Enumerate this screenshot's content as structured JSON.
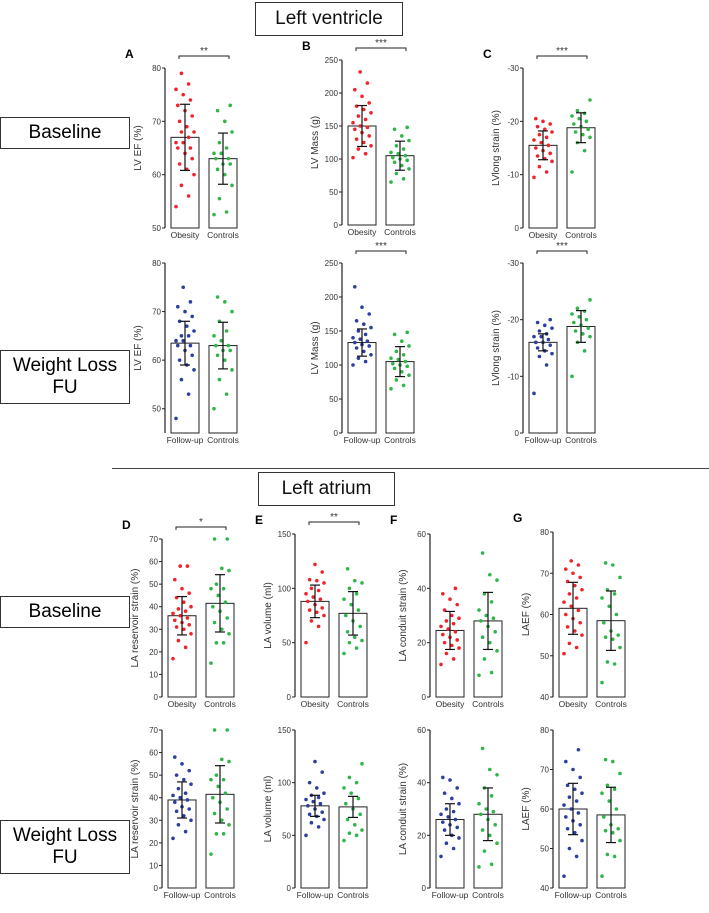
{
  "sections": {
    "lv": "Left ventricle",
    "la": "Left atrium"
  },
  "rows": {
    "baseline": "Baseline",
    "fu": "Weight Loss FU"
  },
  "colors": {
    "obesity": "#f2222b",
    "controls": "#2fb54a",
    "followup": "#2a3fa0"
  },
  "chart_data": [
    {
      "id": "A",
      "letter": "A",
      "type": "bar",
      "ylabel": "LV EF (%)",
      "ylim": [
        50,
        80
      ],
      "ticks": [
        50,
        60,
        70,
        80
      ],
      "sig": "**",
      "groups": [
        {
          "label": "Obesity",
          "mean": 67,
          "sd": 6.2,
          "color": "obesity",
          "points": [
            54,
            56,
            58,
            60,
            61,
            62,
            63,
            64,
            65,
            65,
            66,
            66,
            67,
            68,
            68,
            69,
            70,
            71,
            72,
            73,
            74,
            75,
            76,
            77,
            79
          ]
        },
        {
          "label": "Controls",
          "mean": 63,
          "sd": 4.8,
          "color": "controls",
          "points": [
            52.5,
            53,
            55.5,
            58,
            60,
            61,
            62,
            62,
            63,
            63,
            64,
            64,
            65,
            66,
            68,
            70,
            72,
            73
          ]
        }
      ]
    },
    {
      "id": "B",
      "letter": "B",
      "type": "bar",
      "ylabel": "LV Mass (g)",
      "ylim": [
        0,
        250
      ],
      "ticks": [
        0,
        50,
        100,
        150,
        200,
        250
      ],
      "sig": "***",
      "groups": [
        {
          "label": "Obesity",
          "mean": 150,
          "sd": 31,
          "color": "obesity",
          "points": [
            102,
            108,
            115,
            120,
            125,
            130,
            135,
            140,
            145,
            148,
            150,
            155,
            160,
            165,
            170,
            175,
            180,
            185,
            195,
            205,
            215,
            232
          ]
        },
        {
          "label": "Controls",
          "mean": 105,
          "sd": 22,
          "color": "controls",
          "points": [
            65,
            70,
            78,
            85,
            90,
            95,
            98,
            100,
            102,
            105,
            108,
            110,
            115,
            120,
            128,
            135,
            145,
            148
          ]
        }
      ]
    },
    {
      "id": "C",
      "letter": "C",
      "type": "bar",
      "ylabel": "LVlong strain (%)",
      "ylim": [
        0,
        -30
      ],
      "ticks": [
        0,
        -10,
        -20,
        -30
      ],
      "sig": "***",
      "groups": [
        {
          "label": "Obesity",
          "mean": -15.5,
          "sd": 2.7,
          "color": "obesity",
          "points": [
            -9.5,
            -10.5,
            -11.5,
            -12.5,
            -13,
            -13.5,
            -14,
            -14.5,
            -15,
            -15.5,
            -16,
            -16.5,
            -17,
            -17.5,
            -18,
            -18.5,
            -19,
            -19.5,
            -20,
            -20.5
          ]
        },
        {
          "label": "Controls",
          "mean": -18.8,
          "sd": 2.8,
          "color": "controls",
          "points": [
            -10.5,
            -14.5,
            -16,
            -17,
            -17.5,
            -18,
            -18.5,
            -19,
            -19.5,
            -20,
            -20.5,
            -21,
            -21.5,
            -22,
            -24
          ]
        }
      ]
    },
    {
      "id": "A2",
      "letter": "",
      "type": "bar",
      "ylabel": "LV EF (%)",
      "ylim": [
        45,
        80
      ],
      "ticks": [
        50,
        60,
        70,
        80
      ],
      "sig": "",
      "groups": [
        {
          "label": "Follow-up",
          "mean": 63.5,
          "sd": 4.5,
          "color": "followup",
          "points": [
            48,
            53,
            56,
            58,
            59,
            60,
            61,
            62,
            63,
            63,
            64,
            64,
            65,
            65,
            66,
            67,
            68,
            69,
            70,
            71,
            72,
            75
          ]
        },
        {
          "label": "Controls",
          "mean": 63,
          "sd": 4.8,
          "color": "controls",
          "points": [
            50,
            53,
            56,
            58,
            60,
            61,
            62,
            62,
            63,
            63,
            64,
            65,
            66,
            68,
            70,
            72,
            73
          ]
        }
      ]
    },
    {
      "id": "B2",
      "letter": "",
      "type": "bar",
      "ylabel": "LV Mass (g)",
      "ylim": [
        0,
        250
      ],
      "ticks": [
        0,
        50,
        100,
        150,
        200,
        250
      ],
      "sig": "***",
      "groups": [
        {
          "label": "Follow-up",
          "mean": 133,
          "sd": 20,
          "color": "followup",
          "points": [
            100,
            105,
            110,
            115,
            120,
            125,
            128,
            130,
            133,
            135,
            138,
            140,
            145,
            150,
            155,
            160,
            165,
            175,
            185,
            215
          ]
        },
        {
          "label": "Controls",
          "mean": 105,
          "sd": 22,
          "color": "controls",
          "points": [
            65,
            70,
            78,
            85,
            90,
            95,
            98,
            100,
            102,
            105,
            108,
            110,
            115,
            120,
            128,
            135,
            145,
            148
          ]
        }
      ]
    },
    {
      "id": "C2",
      "letter": "",
      "type": "bar",
      "ylabel": "LVlong strain (%)",
      "ylim": [
        0,
        -30
      ],
      "ticks": [
        0,
        -10,
        -20,
        -30
      ],
      "sig": "***",
      "groups": [
        {
          "label": "Follow-up",
          "mean": -16,
          "sd": 1.5,
          "color": "followup",
          "points": [
            -7,
            -12,
            -13.5,
            -14,
            -14.5,
            -15,
            -15.5,
            -16,
            -16,
            -16.5,
            -17,
            -17,
            -17.5,
            -18,
            -18.5,
            -19,
            -19.5,
            -20
          ]
        },
        {
          "label": "Controls",
          "mean": -18.8,
          "sd": 2.8,
          "color": "controls",
          "points": [
            -10,
            -14.5,
            -16,
            -17,
            -17.5,
            -18,
            -18.5,
            -19,
            -19.5,
            -20,
            -20.5,
            -21,
            -21.5,
            -22,
            -23.5
          ]
        }
      ]
    },
    {
      "id": "D",
      "letter": "D",
      "type": "bar",
      "ylabel": "LA reservoir strain (%)",
      "ylim": [
        0,
        70
      ],
      "ticks": [
        0,
        10,
        20,
        30,
        40,
        50,
        60,
        70
      ],
      "sig": "*",
      "groups": [
        {
          "label": "Obesity",
          "mean": 36,
          "sd": 8.5,
          "color": "obesity",
          "points": [
            17,
            22,
            25,
            28,
            30,
            31,
            32,
            33,
            34,
            35,
            36,
            37,
            38,
            39,
            40,
            42,
            44,
            46,
            48,
            52,
            58,
            58
          ]
        },
        {
          "label": "Controls",
          "mean": 41.5,
          "sd": 12.7,
          "color": "controls",
          "points": [
            15,
            24,
            24,
            28,
            30,
            33,
            35,
            38,
            40,
            42,
            45,
            48,
            48,
            50,
            56,
            57,
            70,
            70
          ]
        }
      ]
    },
    {
      "id": "E",
      "letter": "E",
      "type": "bar",
      "ylabel": "LA volume (ml)",
      "ylim": [
        0,
        150
      ],
      "ticks": [
        0,
        50,
        100,
        150
      ],
      "sig": "**",
      "groups": [
        {
          "label": "Obesity",
          "mean": 88,
          "sd": 15,
          "color": "obesity",
          "points": [
            50,
            65,
            70,
            75,
            78,
            80,
            82,
            85,
            88,
            90,
            92,
            95,
            98,
            100,
            105,
            107,
            108,
            115,
            122
          ]
        },
        {
          "label": "Controls",
          "mean": 77,
          "sd": 20,
          "color": "controls",
          "points": [
            40,
            45,
            50,
            52,
            55,
            60,
            65,
            70,
            75,
            80,
            85,
            90,
            95,
            100,
            105,
            107,
            118
          ]
        }
      ]
    },
    {
      "id": "F",
      "letter": "F",
      "type": "bar",
      "ylabel": "LA conduit strain (%)",
      "ylim": [
        0,
        60
      ],
      "ticks": [
        0,
        20,
        40,
        60
      ],
      "sig": "",
      "groups": [
        {
          "label": "Obesity",
          "mean": 24.5,
          "sd": 7,
          "color": "obesity",
          "points": [
            12,
            14,
            16,
            18,
            19,
            20,
            21,
            22,
            23,
            24,
            25,
            26,
            27,
            28,
            29,
            30,
            32,
            34,
            36,
            38,
            40
          ]
        },
        {
          "label": "Controls",
          "mean": 28,
          "sd": 10.5,
          "color": "controls",
          "points": [
            8,
            9,
            14,
            17,
            20,
            22,
            24,
            26,
            28,
            29,
            30,
            32,
            35,
            38,
            43,
            45,
            53
          ]
        }
      ]
    },
    {
      "id": "G",
      "letter": "G",
      "type": "bar",
      "ylabel": "LAEF (%)",
      "ylim": [
        40,
        80
      ],
      "ticks": [
        40,
        50,
        60,
        70,
        80
      ],
      "sig": "",
      "groups": [
        {
          "label": "Obesity",
          "mean": 61.5,
          "sd": 6.3,
          "color": "obesity",
          "points": [
            50.5,
            52,
            53,
            55,
            56,
            57,
            58,
            59,
            60,
            61,
            62,
            63,
            64,
            65,
            66,
            67,
            68,
            69,
            70,
            71,
            72,
            73
          ]
        },
        {
          "label": "Controls",
          "mean": 58.5,
          "sd": 7.2,
          "color": "controls",
          "points": [
            43.5,
            48,
            48.5,
            52,
            54,
            54.5,
            55,
            56,
            58,
            60,
            62,
            64,
            65,
            66,
            69,
            72,
            72.5
          ]
        }
      ]
    },
    {
      "id": "D2",
      "letter": "",
      "type": "bar",
      "ylabel": "LA reservoir strain (%)",
      "ylim": [
        0,
        70
      ],
      "ticks": [
        0,
        10,
        20,
        30,
        40,
        50,
        60,
        70
      ],
      "sig": "",
      "groups": [
        {
          "label": "Follow-up",
          "mean": 39,
          "sd": 8,
          "color": "followup",
          "points": [
            22,
            25,
            28,
            30,
            32,
            34,
            35,
            36,
            38,
            39,
            40,
            41,
            42,
            44,
            46,
            48,
            50,
            52,
            55,
            58
          ]
        },
        {
          "label": "Controls",
          "mean": 41.5,
          "sd": 12.7,
          "color": "controls",
          "points": [
            15,
            24,
            24,
            28,
            30,
            33,
            35,
            38,
            40,
            42,
            45,
            48,
            48,
            50,
            56,
            57,
            70,
            70
          ]
        }
      ]
    },
    {
      "id": "E2",
      "letter": "",
      "type": "bar",
      "ylabel": "LA volume (ml)",
      "ylim": [
        0,
        150
      ],
      "ticks": [
        0,
        50,
        100,
        150
      ],
      "sig": "",
      "groups": [
        {
          "label": "Follow-up",
          "mean": 78,
          "sd": 10,
          "color": "followup",
          "points": [
            50,
            58,
            62,
            65,
            68,
            70,
            72,
            75,
            78,
            80,
            82,
            84,
            86,
            88,
            90,
            95,
            100,
            110,
            120
          ]
        },
        {
          "label": "Controls",
          "mean": 77,
          "sd": 10,
          "color": "controls",
          "points": [
            45,
            50,
            52,
            55,
            60,
            65,
            70,
            75,
            80,
            85,
            90,
            95,
            100,
            105,
            118
          ]
        }
      ]
    },
    {
      "id": "F2",
      "letter": "",
      "type": "bar",
      "ylabel": "LA conduit strain (%)",
      "ylim": [
        0,
        60
      ],
      "ticks": [
        0,
        20,
        40,
        60
      ],
      "sig": "",
      "groups": [
        {
          "label": "Follow-up",
          "mean": 26,
          "sd": 6,
          "color": "followup",
          "points": [
            12,
            15,
            17,
            19,
            20,
            22,
            23,
            24,
            25,
            26,
            27,
            28,
            29,
            30,
            32,
            34,
            36,
            38,
            41,
            42
          ]
        },
        {
          "label": "Controls",
          "mean": 28,
          "sd": 10,
          "color": "controls",
          "points": [
            8,
            9,
            14,
            17,
            20,
            22,
            24,
            26,
            28,
            29,
            30,
            32,
            35,
            38,
            43,
            45,
            53
          ]
        }
      ]
    },
    {
      "id": "G2",
      "letter": "",
      "type": "bar",
      "ylabel": "LAEF (%)",
      "ylim": [
        40,
        80
      ],
      "ticks": [
        40,
        50,
        60,
        70,
        80
      ],
      "sig": "",
      "groups": [
        {
          "label": "Follow-up",
          "mean": 60,
          "sd": 6.5,
          "color": "followup",
          "points": [
            43,
            48,
            50,
            52,
            54,
            55,
            56,
            57,
            58,
            59,
            60,
            61,
            62,
            63,
            64,
            65,
            66,
            68,
            70,
            72,
            75
          ]
        },
        {
          "label": "Controls",
          "mean": 58.5,
          "sd": 7,
          "color": "controls",
          "points": [
            43,
            48,
            48.5,
            52,
            54,
            54.5,
            55,
            56,
            58,
            60,
            62,
            64,
            65,
            66,
            69,
            72,
            72.5
          ]
        }
      ]
    }
  ]
}
